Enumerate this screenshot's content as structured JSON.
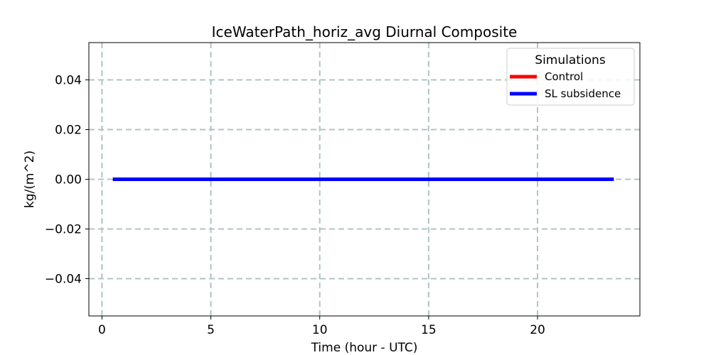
{
  "chart_data": {
    "type": "line",
    "title": "IceWaterPath_horiz_avg Diurnal Composite",
    "xlabel": "Time (hour - UTC)",
    "ylabel": "kg/(m^2)",
    "xlim": [
      -0.6,
      24.7
    ],
    "ylim": [
      -0.055,
      0.055
    ],
    "xticks": [
      0,
      5,
      10,
      15,
      20
    ],
    "xtick_labels": [
      "0",
      "5",
      "10",
      "15",
      "20"
    ],
    "yticks": [
      -0.04,
      -0.02,
      0.0,
      0.02,
      0.04
    ],
    "ytick_labels": [
      "−0.04",
      "−0.02",
      "0.00",
      "0.02",
      "0.04"
    ],
    "grid": true,
    "legend": {
      "title": "Simulations",
      "placement": "top-right"
    },
    "x": [
      0.5,
      1.5,
      2.5,
      3.5,
      4.5,
      5.5,
      6.5,
      7.5,
      8.5,
      9.5,
      10.5,
      11.5,
      12.5,
      13.5,
      14.5,
      15.5,
      16.5,
      17.5,
      18.5,
      19.5,
      20.5,
      21.5,
      22.5,
      23.5
    ],
    "series": [
      {
        "name": "Control",
        "color": "#ff0000",
        "values": [
          0,
          0,
          0,
          0,
          0,
          0,
          0,
          0,
          0,
          0,
          0,
          0,
          0,
          0,
          0,
          0,
          0,
          0,
          0,
          0,
          0,
          0,
          0,
          0
        ]
      },
      {
        "name": "SL subsidence",
        "color": "#0000ff",
        "values": [
          0,
          0,
          0,
          0,
          0,
          0,
          0,
          0,
          0,
          0,
          0,
          0,
          0,
          0,
          0,
          0,
          0,
          0,
          0,
          0,
          0,
          0,
          0,
          0
        ]
      }
    ]
  }
}
